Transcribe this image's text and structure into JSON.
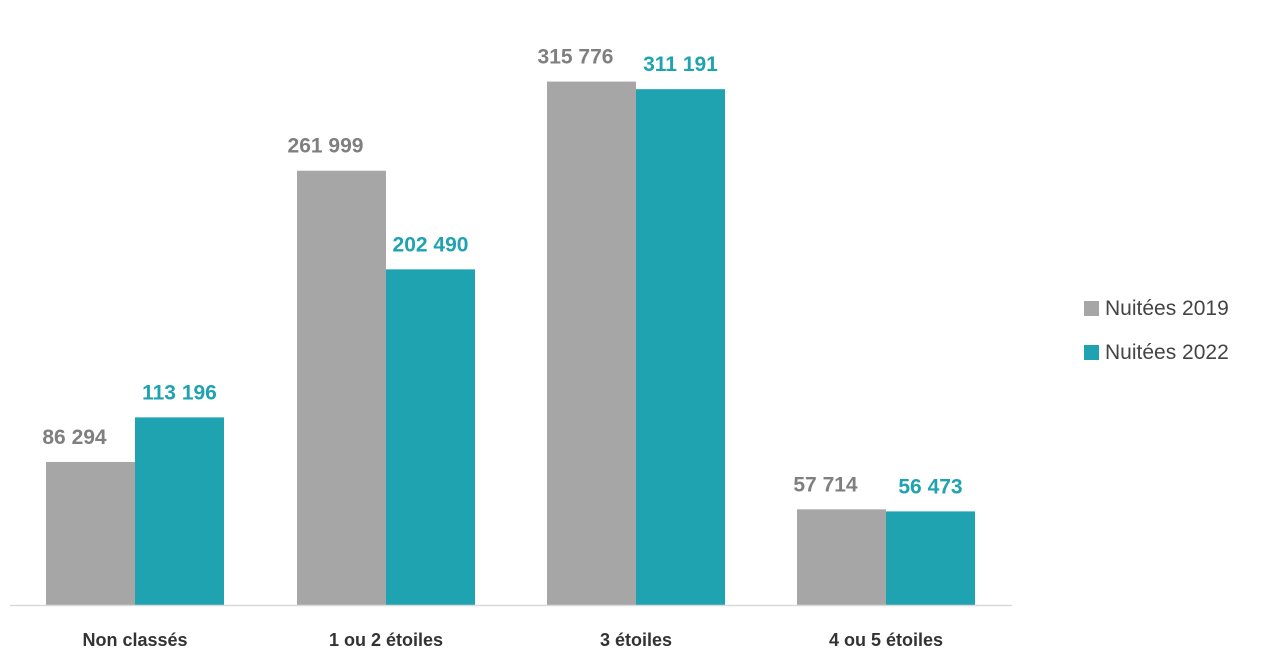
{
  "chart_data": {
    "type": "bar",
    "title": "",
    "xlabel": "",
    "ylabel": "",
    "categories": [
      "Non classés",
      "1 ou 2 étoiles",
      "3 étoiles",
      "4 ou 5 étoiles"
    ],
    "series": [
      {
        "name": "Nuitées 2019",
        "values": [
          86294,
          261999,
          315776,
          57714
        ],
        "labels": [
          "86 294",
          "261 999",
          "315 776",
          "57 714"
        ],
        "color": "#a6a6a6",
        "label_color": "#7f7f7f"
      },
      {
        "name": "Nuitées 2022",
        "values": [
          113196,
          202490,
          311191,
          56473
        ],
        "labels": [
          "113 196",
          "202 490",
          "311 191",
          "56 473"
        ],
        "color": "#1fa3b1",
        "label_color": "#1fa3b1"
      }
    ],
    "ylim": [
      0,
      330000
    ],
    "grid": false,
    "legend_position": "right",
    "axis_color": "#d9d9d9"
  }
}
